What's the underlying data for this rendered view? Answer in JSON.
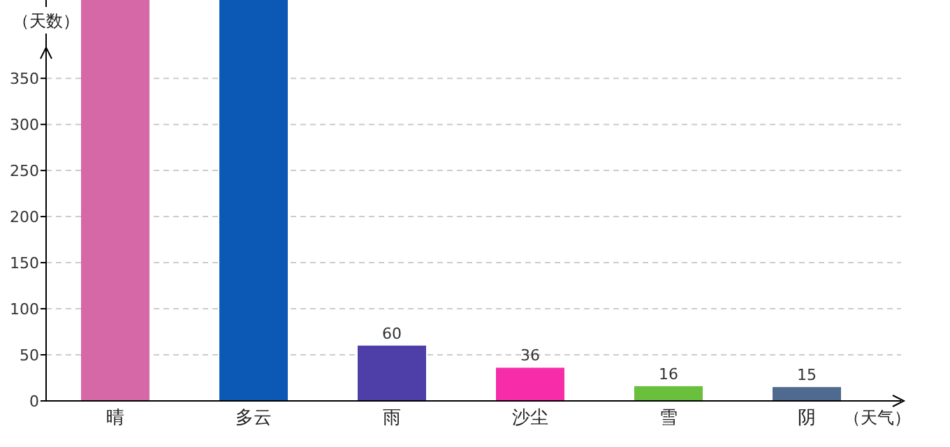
{
  "chart_data": {
    "type": "bar",
    "xlabel": "（天气）",
    "ylabel": "（天数）",
    "categories": [
      "晴",
      "多云",
      "雨",
      "沙尘",
      "雪",
      "阴"
    ],
    "values": [
      435,
      435,
      60,
      36,
      16,
      15
    ],
    "value_labels": [
      null,
      null,
      "60",
      "36",
      "16",
      "15"
    ],
    "colors": [
      "#d668a8",
      "#0b58b5",
      "#4e3fa8",
      "#f72ca8",
      "#6abf3c",
      "#4e6a8e"
    ],
    "ylim": [
      0,
      435
    ],
    "yticks": [
      0,
      50,
      100,
      150,
      200,
      250,
      300,
      350
    ],
    "grid": "y"
  }
}
